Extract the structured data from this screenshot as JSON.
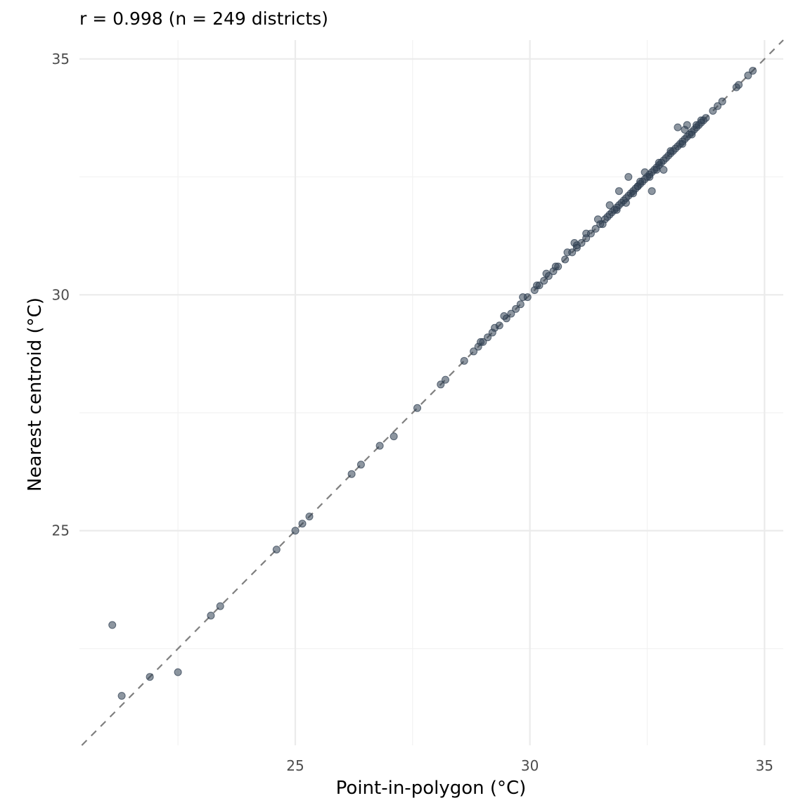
{
  "chart_data": {
    "type": "scatter",
    "title": "",
    "subtitle": "r = 0.998 (n = 249 districts)",
    "xlabel": "Point-in-polygon (°C)",
    "ylabel": "Nearest centroid (°C)",
    "xlim": [
      20.4,
      35.4
    ],
    "ylim": [
      20.45,
      35.4
    ],
    "x_ticks": [
      25,
      30,
      35
    ],
    "y_ticks": [
      25,
      30,
      35
    ],
    "x_tick_labels": [
      "25",
      "30",
      "35"
    ],
    "y_tick_labels": [
      "25",
      "30",
      "35"
    ],
    "grid": true,
    "legend": "none",
    "reference_line": "y = x",
    "colors": {
      "point": "#2f3f52",
      "reference_line": "#7f7f7f",
      "grid": "#ebebeb"
    },
    "points": [
      [
        21.1,
        23.0
      ],
      [
        21.3,
        21.5
      ],
      [
        21.9,
        21.9
      ],
      [
        22.5,
        22.0
      ],
      [
        23.2,
        23.2
      ],
      [
        23.4,
        23.4
      ],
      [
        24.6,
        24.6
      ],
      [
        25.0,
        25.0
      ],
      [
        25.15,
        25.15
      ],
      [
        25.3,
        25.3
      ],
      [
        26.2,
        26.2
      ],
      [
        26.4,
        26.4
      ],
      [
        26.8,
        26.8
      ],
      [
        27.1,
        27.0
      ],
      [
        27.6,
        27.6
      ],
      [
        28.1,
        28.1
      ],
      [
        28.2,
        28.2
      ],
      [
        28.6,
        28.6
      ],
      [
        28.8,
        28.8
      ],
      [
        28.9,
        28.9
      ],
      [
        29.0,
        29.0
      ],
      [
        29.1,
        29.1
      ],
      [
        29.2,
        29.2
      ],
      [
        29.35,
        29.35
      ],
      [
        29.5,
        29.5
      ],
      [
        29.6,
        29.6
      ],
      [
        29.7,
        29.7
      ],
      [
        29.8,
        29.8
      ],
      [
        29.95,
        29.95
      ],
      [
        30.1,
        30.1
      ],
      [
        30.2,
        30.2
      ],
      [
        30.3,
        30.3
      ],
      [
        30.4,
        30.4
      ],
      [
        30.5,
        30.5
      ],
      [
        30.6,
        30.6
      ],
      [
        30.75,
        30.75
      ],
      [
        30.9,
        30.9
      ],
      [
        31.0,
        31.0
      ],
      [
        31.1,
        31.1
      ],
      [
        31.2,
        31.2
      ],
      [
        31.3,
        31.3
      ],
      [
        31.4,
        31.4
      ],
      [
        31.5,
        31.5
      ],
      [
        31.6,
        31.6
      ],
      [
        31.65,
        31.65
      ],
      [
        31.7,
        31.7
      ],
      [
        31.75,
        31.75
      ],
      [
        31.8,
        31.8
      ],
      [
        31.85,
        31.85
      ],
      [
        31.9,
        31.9
      ],
      [
        31.95,
        31.95
      ],
      [
        32.0,
        32.0
      ],
      [
        32.05,
        32.05
      ],
      [
        32.1,
        32.1
      ],
      [
        32.15,
        32.15
      ],
      [
        32.2,
        32.2
      ],
      [
        32.25,
        32.25
      ],
      [
        32.3,
        32.3
      ],
      [
        32.35,
        32.35
      ],
      [
        32.4,
        32.4
      ],
      [
        32.45,
        32.45
      ],
      [
        32.5,
        32.5
      ],
      [
        32.55,
        32.55
      ],
      [
        32.6,
        32.6
      ],
      [
        32.65,
        32.65
      ],
      [
        32.7,
        32.7
      ],
      [
        32.75,
        32.75
      ],
      [
        32.8,
        32.8
      ],
      [
        32.85,
        32.85
      ],
      [
        32.9,
        32.9
      ],
      [
        32.95,
        32.95
      ],
      [
        33.0,
        33.0
      ],
      [
        33.05,
        33.05
      ],
      [
        33.1,
        33.1
      ],
      [
        33.15,
        33.15
      ],
      [
        33.2,
        33.2
      ],
      [
        33.25,
        33.25
      ],
      [
        33.3,
        33.3
      ],
      [
        33.35,
        33.35
      ],
      [
        33.4,
        33.4
      ],
      [
        33.45,
        33.45
      ],
      [
        33.5,
        33.5
      ],
      [
        33.55,
        33.55
      ],
      [
        33.6,
        33.6
      ],
      [
        33.65,
        33.65
      ],
      [
        33.7,
        33.7
      ],
      [
        33.9,
        33.9
      ],
      [
        34.0,
        34.0
      ],
      [
        34.1,
        34.1
      ],
      [
        34.4,
        34.4
      ],
      [
        34.45,
        34.45
      ],
      [
        34.65,
        34.65
      ],
      [
        34.75,
        34.75
      ],
      [
        31.7,
        31.9
      ],
      [
        31.9,
        32.2
      ],
      [
        32.1,
        32.5
      ],
      [
        32.3,
        32.3
      ],
      [
        32.45,
        32.6
      ],
      [
        32.55,
        32.5
      ],
      [
        32.6,
        32.2
      ],
      [
        32.7,
        32.65
      ],
      [
        32.85,
        32.65
      ],
      [
        33.15,
        33.55
      ],
      [
        33.3,
        33.5
      ],
      [
        33.35,
        33.6
      ],
      [
        33.55,
        33.6
      ],
      [
        31.45,
        31.6
      ],
      [
        31.2,
        31.3
      ],
      [
        30.95,
        31.1
      ],
      [
        30.8,
        30.9
      ],
      [
        30.35,
        30.45
      ],
      [
        29.85,
        29.95
      ],
      [
        29.45,
        29.55
      ],
      [
        29.25,
        29.3
      ],
      [
        28.95,
        29.0
      ],
      [
        30.15,
        30.2
      ],
      [
        30.55,
        30.6
      ],
      [
        31.0,
        31.05
      ],
      [
        31.55,
        31.5
      ],
      [
        31.85,
        31.8
      ],
      [
        32.05,
        31.95
      ],
      [
        32.2,
        32.15
      ],
      [
        32.35,
        32.4
      ],
      [
        32.75,
        32.8
      ],
      [
        33.0,
        33.05
      ],
      [
        33.25,
        33.2
      ],
      [
        33.45,
        33.4
      ],
      [
        33.65,
        33.7
      ],
      [
        33.75,
        33.75
      ]
    ]
  }
}
